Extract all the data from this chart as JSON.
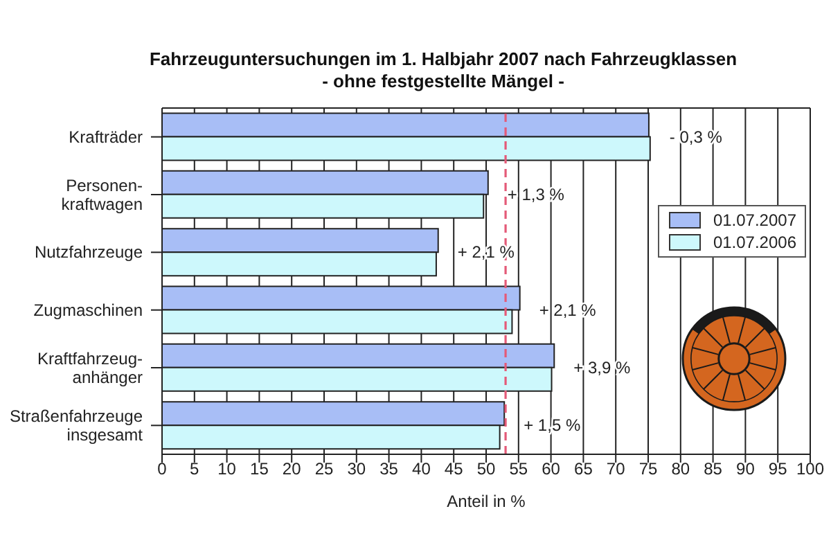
{
  "chart_data": {
    "type": "bar",
    "orientation": "horizontal",
    "title": "Fahrzeuguntersuchungen im 1. Halbjahr 2007 nach Fahrzeugklassen",
    "subtitle": "- ohne festgestellte Mängel -",
    "xlabel": "Anteil in %",
    "categories": [
      "Krafträder",
      "Personen-\nkraftwagen",
      "Nutzfahrzeuge",
      "Zugmaschinen",
      "Kraftfahrzeug-\nanhänger",
      "Straßenfahrzeuge\ninsgesamt"
    ],
    "series": [
      {
        "name": "01.07.2007",
        "color": "#a8bef6",
        "values": [
          75.1,
          50.3,
          42.6,
          55.2,
          60.5,
          52.8
        ]
      },
      {
        "name": "01.07.2006",
        "color": "#cdf8fc",
        "values": [
          75.3,
          49.6,
          42.3,
          54.0,
          60.1,
          52.1
        ]
      }
    ],
    "xlim": [
      0,
      100
    ],
    "xticks": [
      0,
      5,
      10,
      15,
      20,
      25,
      30,
      35,
      40,
      45,
      50,
      55,
      60,
      65,
      70,
      75,
      80,
      85,
      90,
      95,
      100
    ],
    "grid": "x",
    "legend": "right",
    "ref_lines": [
      {
        "axis": "x",
        "value": 53,
        "color": "#e45a78",
        "line_style": "dashed"
      }
    ],
    "annotations": [
      "- 0,3 %",
      "+ 1,3 %",
      "+ 2,1 %",
      "+ 2,1 %",
      "+ 3,9 %",
      "+ 1,5 %"
    ]
  }
}
